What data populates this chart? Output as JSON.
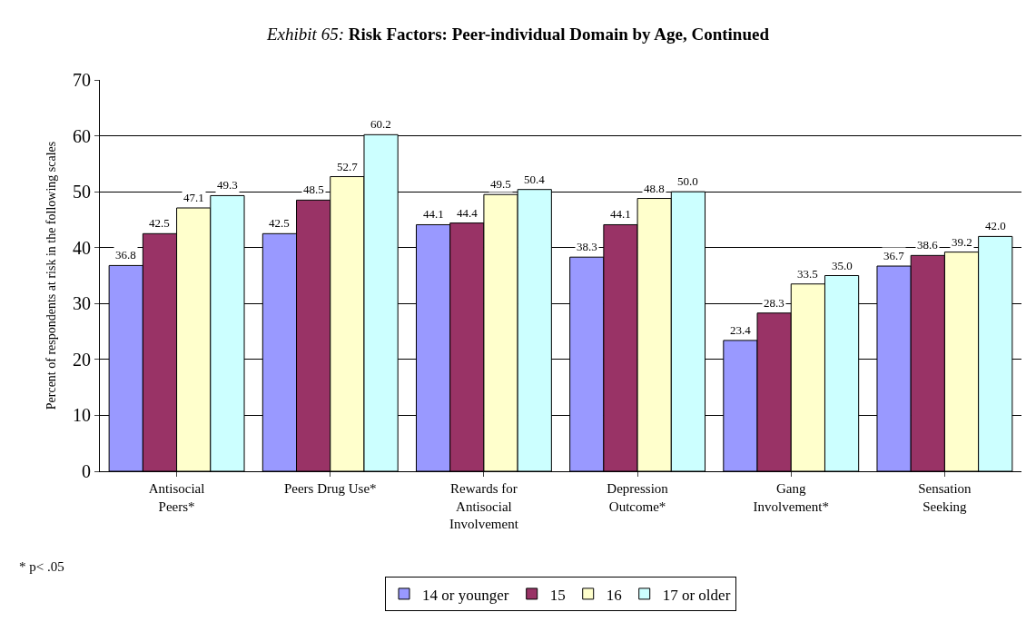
{
  "chart_data": {
    "type": "bar",
    "title": "Exhibit 65: Risk Factors: Peer-individual Domain by Age, Continued",
    "ylabel": "Percent of respondents at risk in the following scales",
    "categories": [
      "Antisocial Peers*",
      "Peers Drug Use*",
      "Rewards for Antisocial Involvement",
      "Depression Outcome*",
      "Gang Involvement*",
      "Sensation Seeking"
    ],
    "series": [
      {
        "name": "14 or younger",
        "color": "#9999ff",
        "values": [
          36.8,
          42.5,
          44.1,
          38.3,
          23.4,
          36.7
        ],
        "value_labels": [
          "36.8",
          "42.5",
          "44.1",
          "38.3",
          "23.4",
          "36.7"
        ]
      },
      {
        "name": "15",
        "color": "#993366",
        "values": [
          42.5,
          48.5,
          44.4,
          44.1,
          28.3,
          38.6
        ],
        "value_labels": [
          "42.5",
          "48.5",
          "44.4",
          "44.1",
          "28.3",
          "38.6"
        ]
      },
      {
        "name": "16",
        "color": "#ffffcc",
        "values": [
          47.1,
          52.7,
          49.5,
          48.8,
          33.5,
          39.2
        ],
        "value_labels": [
          "47.1",
          "52.7",
          "49.5",
          "48.8",
          "33.5",
          "39.2"
        ]
      },
      {
        "name": "17 or older",
        "color": "#ccffff",
        "values": [
          49.3,
          60.2,
          50.4,
          50.0,
          35.0,
          42.0
        ],
        "value_labels": [
          "49.3",
          "60.2",
          "50.4",
          "50.0",
          "35.0",
          "42.0"
        ]
      }
    ],
    "ylim": [
      0,
      70
    ],
    "yticks": [
      0,
      10,
      20,
      30,
      40,
      50,
      60,
      70
    ],
    "grid": "y",
    "legend": "bottom",
    "annotations": [
      "* p< .05"
    ]
  }
}
